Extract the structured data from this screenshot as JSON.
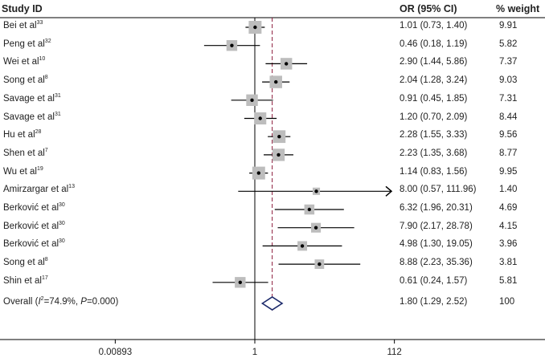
{
  "headers": {
    "study": "Study ID",
    "or": "OR (95% CI)",
    "weight": "% weight"
  },
  "chart_data": {
    "type": "forest",
    "x_scale": "log",
    "x_ticks": [
      {
        "value": 0.00893,
        "label": "0.00893"
      },
      {
        "value": 1,
        "label": "1"
      },
      {
        "value": 112,
        "label": "112"
      }
    ],
    "overall_line": 1.8,
    "studies": [
      {
        "name": "Bei et al",
        "ref": "33",
        "or": 1.01,
        "lo": 0.73,
        "hi": 1.4,
        "ci_text": "1.01 (0.73, 1.40)",
        "weight": "9.91"
      },
      {
        "name": "Peng et al",
        "ref": "32",
        "or": 0.46,
        "lo": 0.18,
        "hi": 1.19,
        "ci_text": "0.46 (0.18, 1.19)",
        "weight": "5.82"
      },
      {
        "name": "Wei et al",
        "ref": "10",
        "or": 2.9,
        "lo": 1.44,
        "hi": 5.86,
        "ci_text": "2.90 (1.44, 5.86)",
        "weight": "7.37"
      },
      {
        "name": "Song et al",
        "ref": "8",
        "or": 2.04,
        "lo": 1.28,
        "hi": 3.24,
        "ci_text": "2.04 (1.28, 3.24)",
        "weight": "9.03"
      },
      {
        "name": "Savage et al",
        "ref": "31",
        "or": 0.91,
        "lo": 0.45,
        "hi": 1.85,
        "ci_text": "0.91 (0.45, 1.85)",
        "weight": "7.31"
      },
      {
        "name": "Savage et al",
        "ref": "31",
        "or": 1.2,
        "lo": 0.7,
        "hi": 2.09,
        "ci_text": "1.20 (0.70, 2.09)",
        "weight": "8.44"
      },
      {
        "name": "Hu et al",
        "ref": "28",
        "or": 2.28,
        "lo": 1.55,
        "hi": 3.33,
        "ci_text": "2.28 (1.55, 3.33)",
        "weight": "9.56"
      },
      {
        "name": "Shen et al",
        "ref": "7",
        "or": 2.23,
        "lo": 1.35,
        "hi": 3.68,
        "ci_text": "2.23 (1.35, 3.68)",
        "weight": "8.77"
      },
      {
        "name": "Wu et al",
        "ref": "19",
        "or": 1.14,
        "lo": 0.83,
        "hi": 1.56,
        "ci_text": "1.14 (0.83, 1.56)",
        "weight": "9.95"
      },
      {
        "name": "Amirzargar et al",
        "ref": "13",
        "or": 8.0,
        "lo": 0.57,
        "hi": 111.96,
        "ci_text": "8.00 (0.57, 111.96)",
        "weight": "1.40",
        "arrow": true
      },
      {
        "name": "Berković et al",
        "ref": "30",
        "or": 6.32,
        "lo": 1.96,
        "hi": 20.31,
        "ci_text": "6.32 (1.96, 20.31)",
        "weight": "4.69"
      },
      {
        "name": "Berković et al",
        "ref": "30",
        "or": 7.9,
        "lo": 2.17,
        "hi": 28.78,
        "ci_text": "7.90 (2.17, 28.78)",
        "weight": "4.15"
      },
      {
        "name": "Berković et al",
        "ref": "30",
        "or": 4.98,
        "lo": 1.3,
        "hi": 19.05,
        "ci_text": "4.98 (1.30, 19.05)",
        "weight": "3.96"
      },
      {
        "name": "Song et al",
        "ref": "8",
        "or": 8.88,
        "lo": 2.23,
        "hi": 35.36,
        "ci_text": "8.88 (2.23, 35.36)",
        "weight": "3.81"
      },
      {
        "name": "Shin et al",
        "ref": "17",
        "or": 0.61,
        "lo": 0.24,
        "hi": 1.57,
        "ci_text": "0.61 (0.24, 1.57)",
        "weight": "5.81"
      }
    ],
    "overall": {
      "label_prefix": "Overall (",
      "i2_symbol": "I",
      "i2_sup": "2",
      "i2_value": "=74.9%, ",
      "p_symbol": "P",
      "p_value": "=0.000)",
      "or": 1.8,
      "lo": 1.29,
      "hi": 2.52,
      "ci_text": "1.80 (1.29, 2.52)",
      "weight": "100"
    },
    "colors": {
      "box": "#bdbdbd",
      "line": "#000000",
      "overall_line": "#8b1a3a",
      "diamond": "#1c2a6b"
    }
  }
}
